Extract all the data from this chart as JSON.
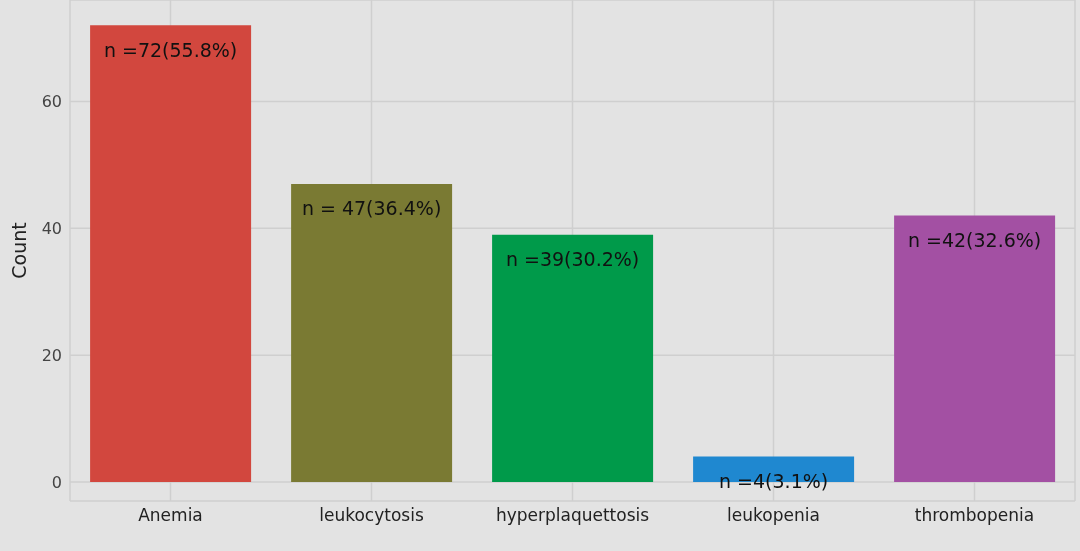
{
  "chart_data": {
    "type": "bar",
    "ylabel": "Count",
    "categories": [
      "Anemia",
      "leukocytosis",
      "hyperplaquettosis",
      "leukopenia",
      "thrombopenia"
    ],
    "values": [
      72,
      47,
      39,
      4,
      42
    ],
    "colors": [
      "#d2473e",
      "#7a7a33",
      "#009a4a",
      "#1f88d0",
      "#a350a3"
    ],
    "value_labels": [
      "n =72(55.8%)",
      "n = 47(36.4%)",
      "n =39(30.2%)",
      "n =4(3.1%)",
      "n =42(32.6%)"
    ],
    "ylim": [
      -3,
      76
    ],
    "yticks": [
      0,
      20,
      40,
      60
    ],
    "grid": true
  }
}
